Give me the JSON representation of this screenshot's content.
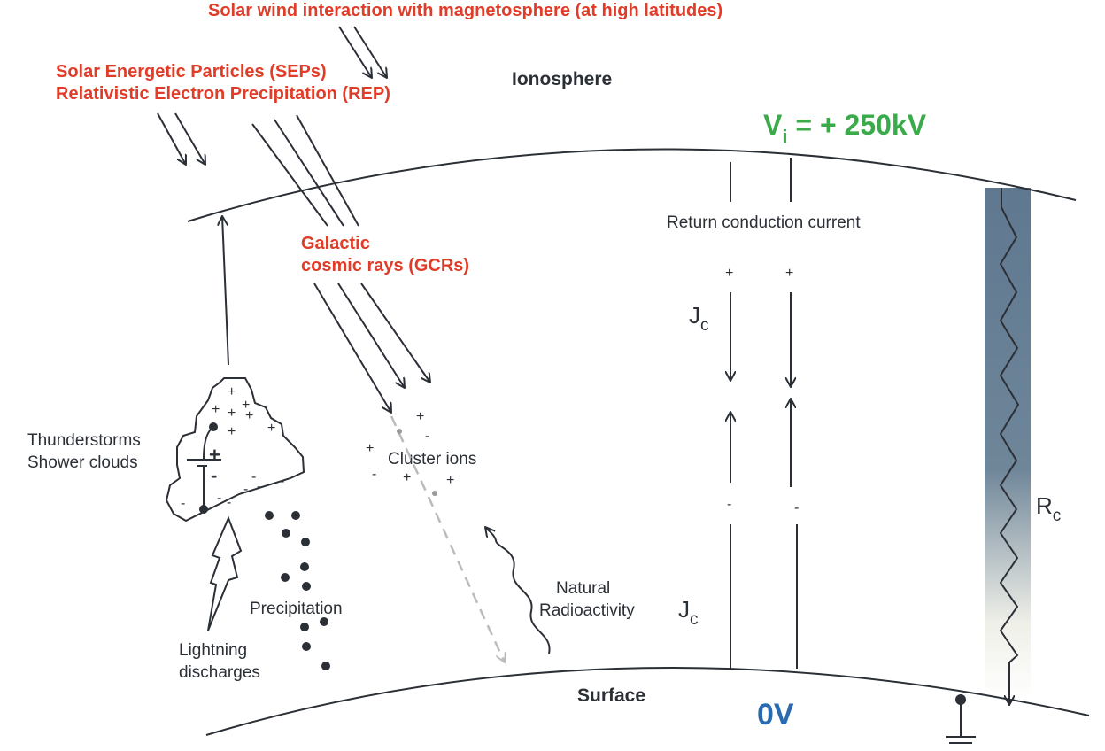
{
  "labels": {
    "solar_wind": "Solar wind interaction with magnetosphere (at high latitudes)",
    "sep": "Solar Energetic Particles (SEPs)",
    "rep": "Relativistic Electron Precipitation (REP)",
    "ionosphere": "Ionosphere",
    "vi_main": "V",
    "vi_sub": "i",
    "vi_value": " = + 250kV",
    "gcr_line1": "Galactic",
    "gcr_line2": "cosmic rays (GCRs)",
    "return_current": "Return conduction current",
    "jc_main": "J",
    "jc_sub": "c",
    "rc_main": "R",
    "rc_sub": "c",
    "thunderstorms": "Thunderstorms",
    "shower_clouds": "Shower clouds",
    "cluster_ions": "Cluster ions",
    "natural": "Natural",
    "radioactivity": "Radioactivity",
    "precipitation": "Precipitation",
    "lightning1": "Lightning",
    "lightning2": "discharges",
    "surface": "Surface",
    "surface_voltage": "0V",
    "plus": "+",
    "minus": "-"
  },
  "colors": {
    "particle_labels": "#e03c28",
    "ionosphere_voltage": "#3aaa4a",
    "surface_voltage": "#2a6ab0",
    "column_top": "#5f7890",
    "lines": "#2b2f36"
  }
}
